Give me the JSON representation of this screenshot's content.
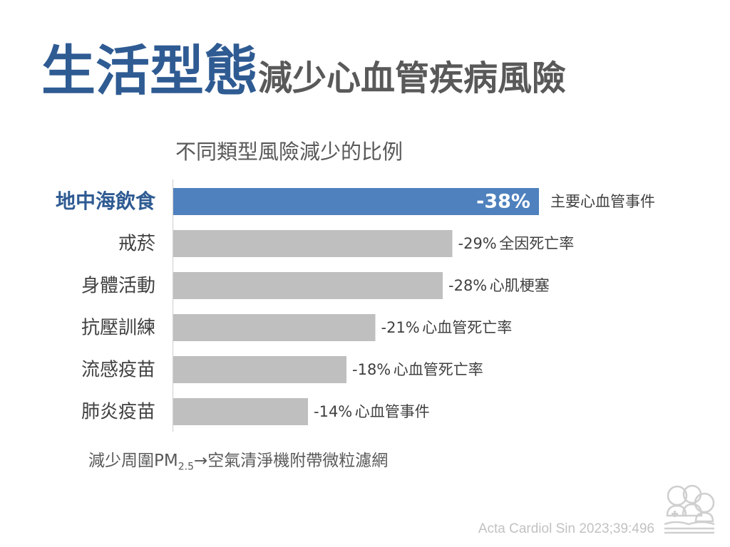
{
  "title": {
    "main": "生活型態",
    "sub": "減少心血管疾病風險"
  },
  "chart_data": {
    "type": "bar",
    "orientation": "horizontal",
    "subtitle": "不同類型風險減少的比例",
    "categories": [
      "地中海飲食",
      "戒菸",
      "身體活動",
      "抗壓訓練",
      "流感疫苗",
      "肺炎疫苗"
    ],
    "values": [
      -38,
      -29,
      -28,
      -21,
      -18,
      -14
    ],
    "value_labels": [
      "-38%",
      "-29%",
      "-28%",
      "-21%",
      "-18%",
      "-14%"
    ],
    "outcomes": [
      "主要心血管事件",
      "全因死亡率",
      "心肌梗塞",
      "心血管死亡率",
      "心血管死亡率",
      "心血管事件"
    ],
    "highlight_index": 0,
    "colors": {
      "highlight": "#4e81bd",
      "default": "#bfbfbf",
      "axis": "#d9d9d9"
    },
    "grid": false,
    "legend": "none"
  },
  "footnote": {
    "prefix": "減少周圍PM",
    "subscript": "2.5",
    "suffix": "→空氣清淨機附帶微粒濾網"
  },
  "citation": "Acta Cardiol Sin 2023;39:496",
  "logo": {
    "icon": "health-education-logo-icon"
  }
}
